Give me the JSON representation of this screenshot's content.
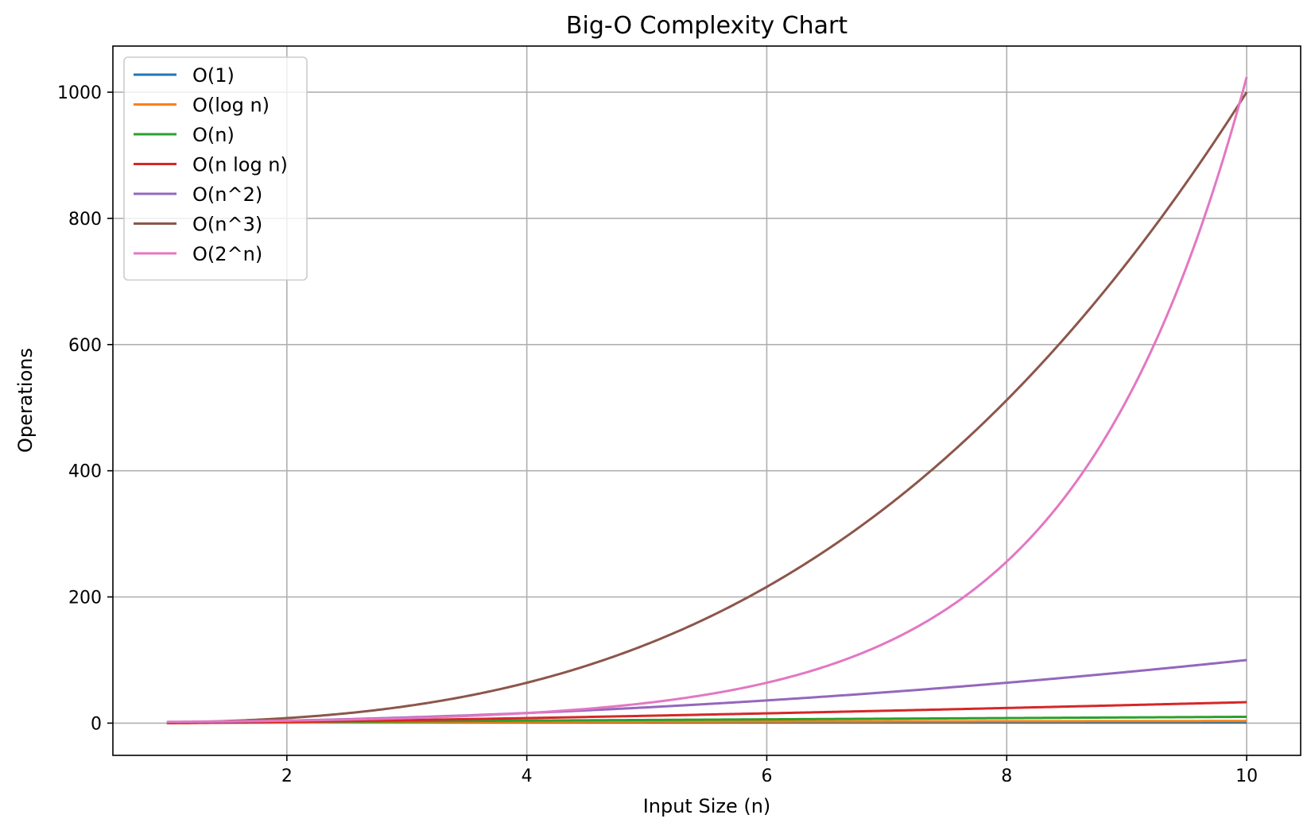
{
  "chart_data": {
    "type": "line",
    "title": "Big-O Complexity Chart",
    "xlabel": "Input Size (n)",
    "ylabel": "Operations",
    "xlim": [
      0.55,
      10.45
    ],
    "ylim": [
      -51.1,
      1073.1
    ],
    "xticks": [
      2,
      4,
      6,
      8,
      10
    ],
    "yticks": [
      0,
      200,
      400,
      600,
      800,
      1000
    ],
    "grid": true,
    "legend_position": "top-left",
    "x_range": [
      1,
      10
    ],
    "series": [
      {
        "name": "O(1)",
        "color": "#1f77b4",
        "formula": "1"
      },
      {
        "name": "O(log n)",
        "color": "#ff7f0e",
        "formula": "log2(n)"
      },
      {
        "name": "O(n)",
        "color": "#2ca02c",
        "formula": "n"
      },
      {
        "name": "O(n log n)",
        "color": "#d62728",
        "formula": "n*log2(n)"
      },
      {
        "name": "O(n^2)",
        "color": "#9467bd",
        "formula": "n^2"
      },
      {
        "name": "O(n^3)",
        "color": "#8c564b",
        "formula": "n^3"
      },
      {
        "name": "O(2^n)",
        "color": "#e377c2",
        "formula": "2^n"
      }
    ]
  }
}
